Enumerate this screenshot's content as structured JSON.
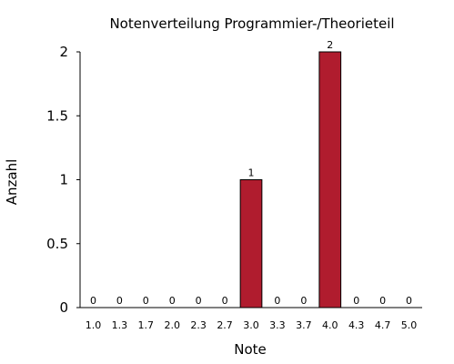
{
  "chart_data": {
    "type": "bar",
    "title": "Notenverteilung Programmier-/Theorieteil",
    "xlabel": "Note",
    "ylabel": "Anzahl",
    "categories": [
      "1.0",
      "1.3",
      "1.7",
      "2.0",
      "2.3",
      "2.7",
      "3.0",
      "3.3",
      "3.7",
      "4.0",
      "4.3",
      "4.7",
      "5.0"
    ],
    "values": [
      0,
      0,
      0,
      0,
      0,
      0,
      1,
      0,
      0,
      2,
      0,
      0,
      0
    ],
    "data_labels": [
      "0",
      "0",
      "0",
      "0",
      "0",
      "0",
      "1",
      "0",
      "0",
      "2",
      "0",
      "0",
      "0"
    ],
    "ylim": [
      0,
      2
    ],
    "yticks": [
      0,
      0.5,
      1,
      1.5,
      2
    ],
    "ytick_labels": [
      "0",
      "0.5",
      "1",
      "1.5",
      "2"
    ],
    "grid": false,
    "legend": "none",
    "bar_color": "#b01c2e"
  }
}
